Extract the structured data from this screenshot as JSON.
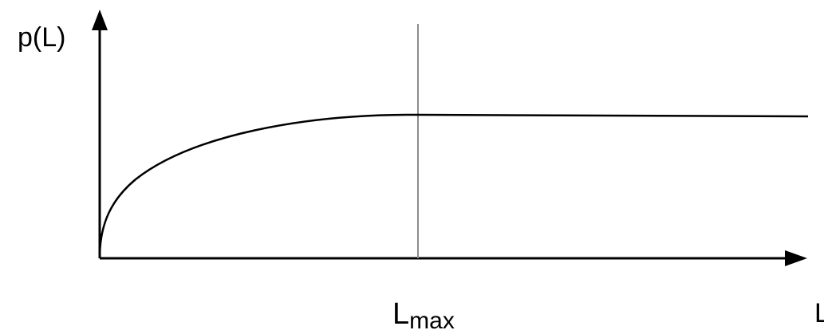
{
  "diagram": {
    "y_axis_label": "p(L)",
    "x_axis_label": "L",
    "marker_label_main": "L",
    "marker_label_sub": "max"
  },
  "colors": {
    "axis": "#000000",
    "curve": "#000000",
    "marker": "#8c8c8c",
    "background": "#ffffff"
  }
}
